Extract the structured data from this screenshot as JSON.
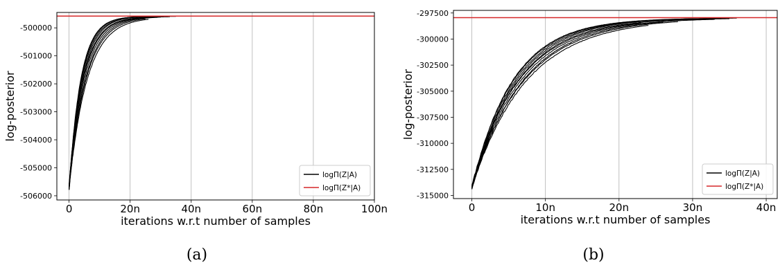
{
  "chart_data": [
    {
      "type": "line",
      "caption": "(a)",
      "xlabel": "iterations w.r.t number of samples",
      "ylabel": "log-posterior",
      "xlim": [
        -4,
        100
      ],
      "ylim": [
        -506150,
        -499450
      ],
      "x_ticks": [
        0,
        20,
        40,
        60,
        80,
        100
      ],
      "x_tick_labels": [
        "0",
        "20n",
        "40n",
        "60n",
        "80n",
        "100n"
      ],
      "y_ticks": [
        -506000,
        -505000,
        -504000,
        -503000,
        -502000,
        -501000,
        -500000
      ],
      "y_tick_labels": [
        "-506000",
        "-505000",
        "-504000",
        "-503000",
        "-502000",
        "-501000",
        "-500000"
      ],
      "grid": "vertical",
      "legend_position": "bottom-right",
      "legend": [
        {
          "label": "logΠ(Z|A)",
          "color": "#000000"
        },
        {
          "label": "logΠ(Z*|A)",
          "color": "#d62728"
        }
      ],
      "reference_line": {
        "y": -499580,
        "color": "#d62728"
      },
      "traces_color": "#000000",
      "traces": [
        {
          "start": -505800,
          "end": -499580,
          "x_end": 37,
          "rate": 0.23
        },
        {
          "start": -505700,
          "end": -499600,
          "x_end": 30,
          "rate": 0.2
        },
        {
          "start": -505750,
          "end": -499590,
          "x_end": 28,
          "rate": 0.26
        },
        {
          "start": -505650,
          "end": -499610,
          "x_end": 25,
          "rate": 0.18
        },
        {
          "start": -505780,
          "end": -499600,
          "x_end": 33,
          "rate": 0.22
        },
        {
          "start": -505720,
          "end": -499620,
          "x_end": 26,
          "rate": 0.17
        },
        {
          "start": -505690,
          "end": -499590,
          "x_end": 35,
          "rate": 0.24
        },
        {
          "start": -505800,
          "end": -499600,
          "x_end": 29,
          "rate": 0.19
        },
        {
          "start": -505600,
          "end": -499600,
          "x_end": 31,
          "rate": 0.21
        },
        {
          "start": -505740,
          "end": -499580,
          "x_end": 27,
          "rate": 0.25
        }
      ]
    },
    {
      "type": "line",
      "caption": "(b)",
      "xlabel": "iterations w.r.t number of samples",
      "ylabel": "log-posterior",
      "xlim": [
        -2.5,
        41.5
      ],
      "ylim": [
        -315300,
        -297250
      ],
      "x_ticks": [
        0,
        10,
        20,
        30,
        40
      ],
      "x_tick_labels": [
        "0",
        "10n",
        "20n",
        "30n",
        "40n"
      ],
      "y_ticks": [
        -315000,
        -312500,
        -310000,
        -307500,
        -305000,
        -302500,
        -300000,
        -297500
      ],
      "y_tick_labels": [
        "-315000",
        "-312500",
        "-310000",
        "-307500",
        "-305000",
        "-302500",
        "-300000",
        "-297500"
      ],
      "grid": "vertical",
      "legend_position": "bottom-right",
      "legend": [
        {
          "label": "logΠ(Z|A)",
          "color": "#000000"
        },
        {
          "label": "logΠ(Z*|A)",
          "color": "#d62728"
        }
      ],
      "reference_line": {
        "y": -297950,
        "color": "#d62728"
      },
      "traces_color": "#000000",
      "traces": [
        {
          "start": -314400,
          "end": -297950,
          "x_end": 36,
          "rate": 0.165
        },
        {
          "start": -314200,
          "end": -298000,
          "x_end": 33,
          "rate": 0.15
        },
        {
          "start": -314300,
          "end": -297980,
          "x_end": 30,
          "rate": 0.18
        },
        {
          "start": -314100,
          "end": -298020,
          "x_end": 28,
          "rate": 0.14
        },
        {
          "start": -314350,
          "end": -297990,
          "x_end": 35,
          "rate": 0.16
        },
        {
          "start": -314250,
          "end": -298050,
          "x_end": 24,
          "rate": 0.135
        },
        {
          "start": -314150,
          "end": -297970,
          "x_end": 32,
          "rate": 0.175
        },
        {
          "start": -314400,
          "end": -298000,
          "x_end": 26,
          "rate": 0.145
        },
        {
          "start": -314000,
          "end": -298010,
          "x_end": 23,
          "rate": 0.155
        },
        {
          "start": -314300,
          "end": -297960,
          "x_end": 34,
          "rate": 0.17
        }
      ]
    }
  ]
}
